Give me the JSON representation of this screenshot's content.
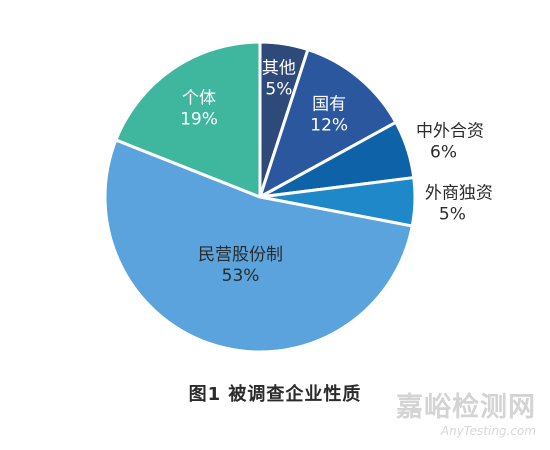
{
  "chart_data": {
    "type": "pie",
    "title": "图1 被调查企业性质",
    "start": "12 o'clock, clockwise",
    "slices": [
      {
        "label": "其他",
        "value": 5,
        "value_label": "5%",
        "color": "#2e4a7a",
        "text_color": "#ffffff"
      },
      {
        "label": "国有",
        "value": 12,
        "value_label": "12%",
        "color": "#2a579d",
        "text_color": "#ffffff"
      },
      {
        "label": "中外合资",
        "value": 6,
        "value_label": "6%",
        "color": "#0e63a8",
        "text_color": "#2b2b2b",
        "label_outside": true
      },
      {
        "label": "外商独资",
        "value": 5,
        "value_label": "5%",
        "color": "#1f88c9",
        "text_color": "#2b2b2b",
        "label_outside": true
      },
      {
        "label": "民营股份制",
        "value": 53,
        "value_label": "53%",
        "color": "#5aa3dc",
        "text_color": "#2b2b2b"
      },
      {
        "label": "个体",
        "value": 19,
        "value_label": "19%",
        "color": "#3fb79e",
        "text_color": "#ffffff"
      }
    ]
  },
  "watermark": {
    "name": "嘉峪检测网",
    "url": "AnyTesting.com"
  }
}
